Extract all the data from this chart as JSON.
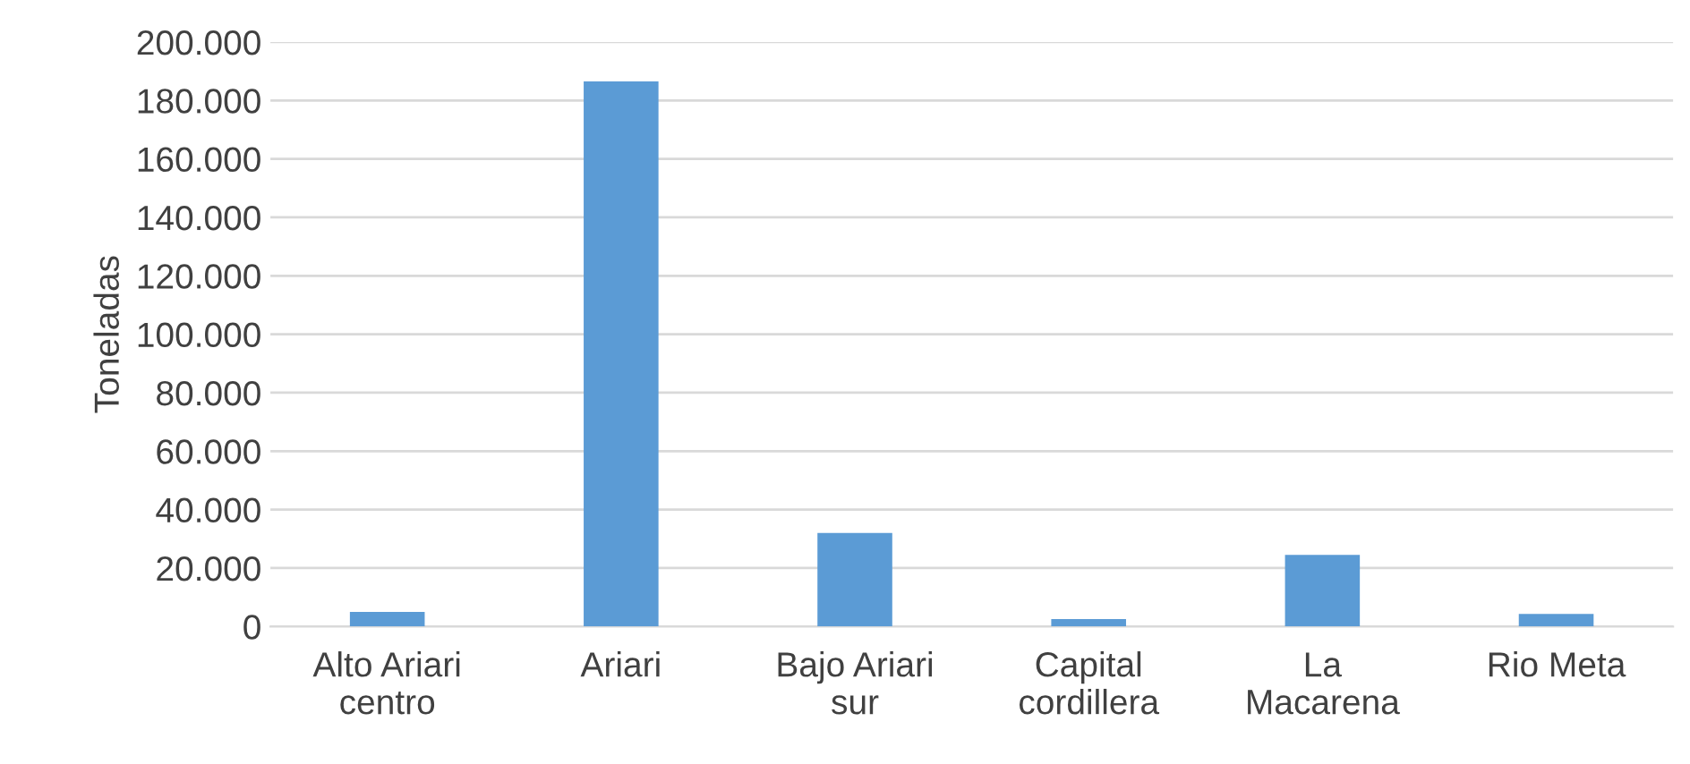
{
  "chart_data": {
    "type": "bar",
    "ylabel": "Toneladas",
    "categories": [
      "Alto Ariari\ncentro",
      "Ariari",
      "Bajo Ariari\nsur",
      "Capital\ncordillera",
      "La\nMacarena",
      "Rio Meta"
    ],
    "values": [
      5000,
      186500,
      32000,
      2500,
      24500,
      4300
    ],
    "color": "#5b9bd5",
    "ylim": [
      0,
      200000
    ],
    "yticks": [
      {
        "value": 0,
        "label": "0"
      },
      {
        "value": 20000,
        "label": "20.000"
      },
      {
        "value": 40000,
        "label": "40.000"
      },
      {
        "value": 60000,
        "label": "60.000"
      },
      {
        "value": 80000,
        "label": "80.000"
      },
      {
        "value": 100000,
        "label": "100.000"
      },
      {
        "value": 120000,
        "label": "120.000"
      },
      {
        "value": 140000,
        "label": "140.000"
      },
      {
        "value": 160000,
        "label": "160.000"
      },
      {
        "value": 180000,
        "label": "180.000"
      },
      {
        "value": 200000,
        "label": "200.000"
      }
    ],
    "grid": "y",
    "legend": false
  }
}
